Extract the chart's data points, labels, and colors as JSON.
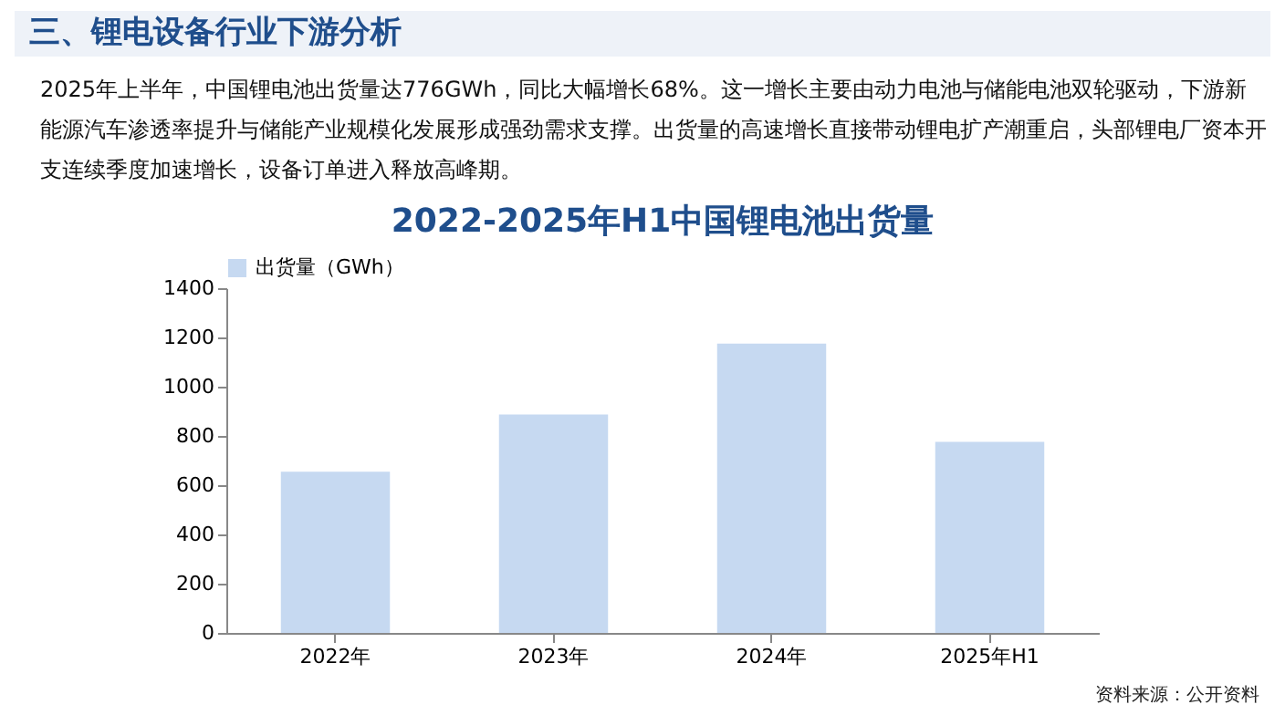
{
  "chart_data": {
    "type": "bar",
    "title": "2022-2025年H1中国锂电池出货量",
    "categories": [
      "2022年",
      "2023年",
      "2024年",
      "2025年H1"
    ],
    "series": [
      {
        "name": "出货量（GWh）",
        "color": "#c6d9f1",
        "values": [
          655,
          887,
          1175,
          776
        ]
      }
    ],
    "ylim": [
      0,
      1400
    ],
    "yticks": [
      0,
      200,
      400,
      600,
      800,
      1000,
      1200,
      1400
    ],
    "grid": false,
    "legend": "top",
    "annotations": [
      "三、锂电设备行业下游分析",
      "2025年上半年，中国锂电池出货量达776GWh，同比大幅增长68%。这一增长主要由动力电池与储能电池双轮驱动，下游新能源汽车渗透率提升与储能产业规模化发展形成强劲需求支撑。出货量的高速增长直接带动锂电扩产潮重启，头部锂电厂资本开支连续季度加速增长，设备订单进入释放高峰期。",
      "资料来源：公开资料"
    ]
  }
}
